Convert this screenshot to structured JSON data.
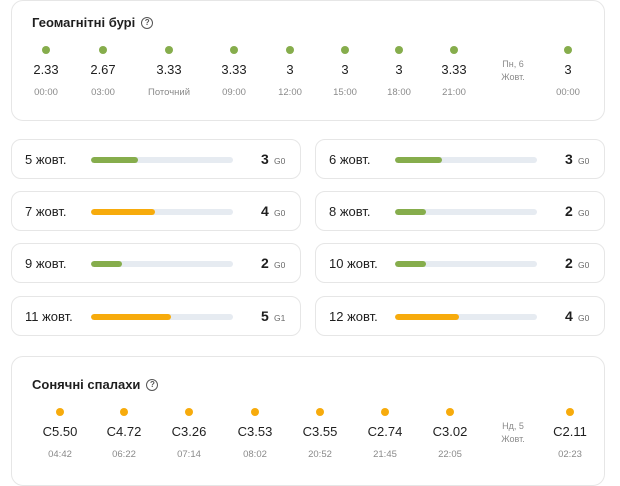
{
  "storms": {
    "title": "Геомагнітні бурі",
    "help_icon": "?",
    "dot_color": "#86ad4c",
    "points": [
      {
        "value": "2.33",
        "time": "00:00"
      },
      {
        "value": "2.67",
        "time": "03:00"
      },
      {
        "value": "3.33",
        "time": "Поточний"
      },
      {
        "value": "3.33",
        "time": "09:00"
      },
      {
        "value": "3",
        "time": "12:00"
      },
      {
        "value": "3",
        "time": "15:00"
      },
      {
        "value": "3",
        "time": "18:00"
      },
      {
        "value": "3.33",
        "time": "21:00"
      },
      {
        "divider": true,
        "day": "Пн, 6",
        "month": "Жовт."
      },
      {
        "value": "3",
        "time": "00:00"
      }
    ]
  },
  "forecast": {
    "green": "#86ad4c",
    "orange": "#f7ab0c",
    "days": [
      {
        "label": "5 жовт.",
        "kp": "3",
        "scale": "G0",
        "level": 0.33,
        "color": "green"
      },
      {
        "label": "6 жовт.",
        "kp": "3",
        "scale": "G0",
        "level": 0.33,
        "color": "green"
      },
      {
        "label": "7 жовт.",
        "kp": "4",
        "scale": "G0",
        "level": 0.45,
        "color": "orange"
      },
      {
        "label": "8 жовт.",
        "kp": "2",
        "scale": "G0",
        "level": 0.22,
        "color": "green"
      },
      {
        "label": "9 жовт.",
        "kp": "2",
        "scale": "G0",
        "level": 0.22,
        "color": "green"
      },
      {
        "label": "10 жовт.",
        "kp": "2",
        "scale": "G0",
        "level": 0.22,
        "color": "green"
      },
      {
        "label": "11 жовт.",
        "kp": "5",
        "scale": "G1",
        "level": 0.56,
        "color": "orange"
      },
      {
        "label": "12 жовт.",
        "kp": "4",
        "scale": "G0",
        "level": 0.45,
        "color": "orange"
      }
    ]
  },
  "flares": {
    "title": "Сонячні спалахи",
    "help_icon": "?",
    "dot_color": "#f7ab0c",
    "points": [
      {
        "value": "C5.50",
        "time": "04:42"
      },
      {
        "value": "C4.72",
        "time": "06:22"
      },
      {
        "value": "C3.26",
        "time": "07:14"
      },
      {
        "value": "C3.53",
        "time": "08:02"
      },
      {
        "value": "C3.55",
        "time": "20:52"
      },
      {
        "value": "C2.74",
        "time": "21:45"
      },
      {
        "value": "C3.02",
        "time": "22:05"
      },
      {
        "divider": true,
        "day": "Нд, 5",
        "month": "Жовт."
      },
      {
        "value": "C2.11",
        "time": "02:23"
      }
    ]
  }
}
